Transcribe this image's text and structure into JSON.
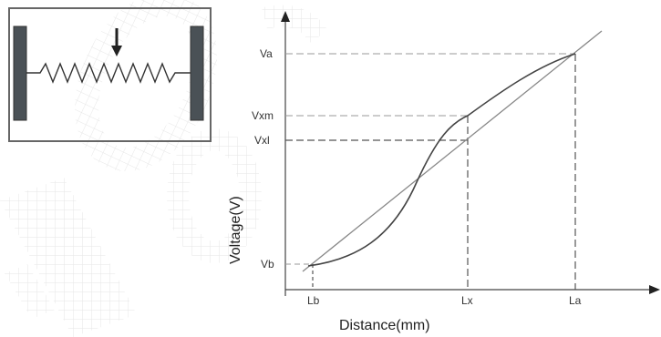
{
  "diagram": {
    "x_axis_title": "Distance(mm)",
    "y_axis_title": "Voltage(V)",
    "x_ticks": {
      "lb": "Lb",
      "lx": "Lx",
      "la": "La"
    },
    "y_ticks": {
      "va": "Va",
      "vxm": "Vxm",
      "vxl": "Vxl",
      "vb": "Vb"
    }
  },
  "colors": {
    "line": "#555555",
    "curve": "#444444",
    "guide": "#777777",
    "slider_bar": "#4a5156",
    "watermark": "#d8d8d8"
  }
}
